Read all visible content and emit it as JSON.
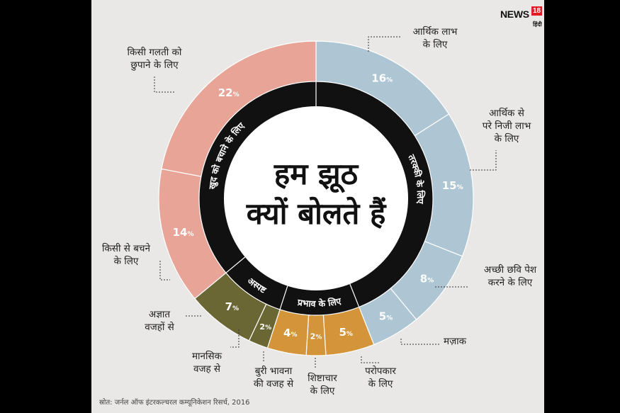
{
  "brand": {
    "news": "NEWS",
    "eighteen": "18",
    "hindi": "हिंदी"
  },
  "chart_data": {
    "type": "pie",
    "title": "हम झूठ क्यों बोलते हैं",
    "title_lines": [
      "हम झूठ",
      "क्यों बोलते हैं"
    ],
    "slices": [
      {
        "label_lines": [
          "आर्थिक लाभ",
          "के लिए"
        ],
        "value": 16,
        "display": "16",
        "color": "#aec6d4",
        "group": "तरक्की के लिए"
      },
      {
        "label_lines": [
          "आर्थिक से",
          "परे निजी लाभ",
          "के लिए"
        ],
        "value": 15,
        "display": "15",
        "color": "#aec6d4",
        "group": "तरक्की के लिए"
      },
      {
        "label_lines": [
          "अच्छी छवि पेश",
          "करने के लिए"
        ],
        "value": 8,
        "display": "8",
        "color": "#aec6d4",
        "group": "तरक्की के लिए"
      },
      {
        "label_lines": [
          "मज़ाक"
        ],
        "value": 5,
        "display": "5",
        "color": "#aec6d4",
        "group": "तरक्की के लिए"
      },
      {
        "label_lines": [
          "परोपकार",
          "के लिए"
        ],
        "value": 5,
        "display": "5",
        "color": "#d49439",
        "group": "प्रभाव के लिए"
      },
      {
        "label_lines": [
          "शिष्टाचार",
          "के लिए"
        ],
        "value": 2,
        "display": "2",
        "color": "#d49439",
        "group": "प्रभाव के लिए"
      },
      {
        "label_lines": [
          "बुरी भावना",
          "की वजह से"
        ],
        "value": 4,
        "display": "4",
        "color": "#d49439",
        "group": "प्रभाव के लिए"
      },
      {
        "label_lines": [
          "मानसिक",
          "वजह से"
        ],
        "value": 2,
        "display": "2",
        "color": "#6a6735",
        "group": "अस्पष्ट"
      },
      {
        "label_lines": [
          "अज्ञात",
          "वजहों से"
        ],
        "value": 7,
        "display": "7",
        "color": "#6a6735",
        "group": "अस्पष्ट"
      },
      {
        "label_lines": [
          "किसी से बचने",
          "के लिए"
        ],
        "value": 14,
        "display": "14",
        "color": "#e8a497",
        "group": "खुद को बचाने के लिए"
      },
      {
        "label_lines": [
          "किसी गलती को",
          "छुपाने के लिए"
        ],
        "value": 22,
        "display": "22",
        "color": "#e8a497",
        "group": "खुद को बचाने के लिए"
      }
    ],
    "groups": [
      "तरक्की के लिए",
      "प्रभाव के लिए",
      "अस्पष्ट",
      "खुद को बचाने के लिए"
    ],
    "source": "स्रोत: जर्नल ऑफ इंटरकल्चरल कम्यूनिकेशन रिसर्च, 2016"
  }
}
